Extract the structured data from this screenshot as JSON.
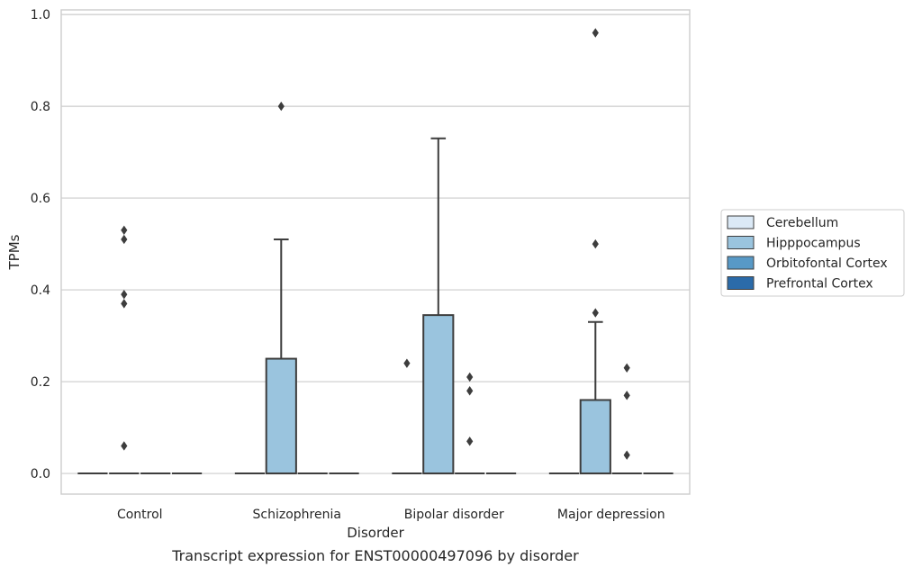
{
  "chart_data": {
    "type": "box",
    "title": "",
    "caption": "Transcript expression for ENST00000497096 by disorder",
    "xlabel": "Disorder",
    "ylabel": "TPMs",
    "ylim": [
      -0.045,
      1.01
    ],
    "y_ticks": [
      0.0,
      0.2,
      0.4,
      0.6,
      0.8,
      1.0
    ],
    "y_tick_labels": [
      "0.0",
      "0.2",
      "0.4",
      "0.6",
      "0.8",
      "1.0"
    ],
    "grid": "y",
    "legend_position": "right",
    "categories": [
      "Control",
      "Schizophrenia",
      "Bipolar disorder",
      "Major depression"
    ],
    "series": [
      {
        "name": "Cerebellum",
        "color": "#dbe9f6",
        "boxes": [
          {
            "q1": 0,
            "median": 0,
            "q3": 0,
            "whisker_low": 0,
            "whisker_high": 0,
            "outliers": []
          },
          {
            "q1": 0,
            "median": 0,
            "q3": 0,
            "whisker_low": 0,
            "whisker_high": 0,
            "outliers": []
          },
          {
            "q1": 0,
            "median": 0,
            "q3": 0,
            "whisker_low": 0,
            "whisker_high": 0,
            "outliers": [
              0.24
            ]
          },
          {
            "q1": 0,
            "median": 0,
            "q3": 0,
            "whisker_low": 0,
            "whisker_high": 0,
            "outliers": []
          }
        ]
      },
      {
        "name": "Hipppocampus",
        "color": "#9ac4de",
        "boxes": [
          {
            "q1": 0,
            "median": 0,
            "q3": 0,
            "whisker_low": 0,
            "whisker_high": 0,
            "outliers": [
              0.39,
              0.37,
              0.53,
              0.51,
              0.06
            ]
          },
          {
            "q1": 0,
            "median": 0,
            "q3": 0.25,
            "whisker_low": 0,
            "whisker_high": 0.51,
            "outliers": [
              0.8
            ]
          },
          {
            "q1": 0,
            "median": 0,
            "q3": 0.345,
            "whisker_low": 0,
            "whisker_high": 0.73,
            "outliers": []
          },
          {
            "q1": 0,
            "median": 0,
            "q3": 0.16,
            "whisker_low": 0,
            "whisker_high": 0.33,
            "outliers": [
              0.96,
              0.5,
              0.35
            ]
          }
        ]
      },
      {
        "name": "Orbitofontal Cortex",
        "color": "#5899c6",
        "boxes": [
          {
            "q1": 0,
            "median": 0,
            "q3": 0,
            "whisker_low": 0,
            "whisker_high": 0,
            "outliers": []
          },
          {
            "q1": 0,
            "median": 0,
            "q3": 0,
            "whisker_low": 0,
            "whisker_high": 0,
            "outliers": []
          },
          {
            "q1": 0,
            "median": 0,
            "q3": 0,
            "whisker_low": 0,
            "whisker_high": 0,
            "outliers": [
              0.18,
              0.07,
              0.21
            ]
          },
          {
            "q1": 0,
            "median": 0,
            "q3": 0,
            "whisker_low": 0,
            "whisker_high": 0,
            "outliers": [
              0.23,
              0.17,
              0.04
            ]
          }
        ]
      },
      {
        "name": "Prefrontal Cortex",
        "color": "#2b6ba9",
        "boxes": [
          {
            "q1": 0,
            "median": 0,
            "q3": 0,
            "whisker_low": 0,
            "whisker_high": 0,
            "outliers": []
          },
          {
            "q1": 0,
            "median": 0,
            "q3": 0,
            "whisker_low": 0,
            "whisker_high": 0,
            "outliers": []
          },
          {
            "q1": 0,
            "median": 0,
            "q3": 0,
            "whisker_low": 0,
            "whisker_high": 0,
            "outliers": []
          },
          {
            "q1": 0,
            "median": 0,
            "q3": 0,
            "whisker_low": 0,
            "whisker_high": 0,
            "outliers": []
          }
        ]
      }
    ]
  }
}
